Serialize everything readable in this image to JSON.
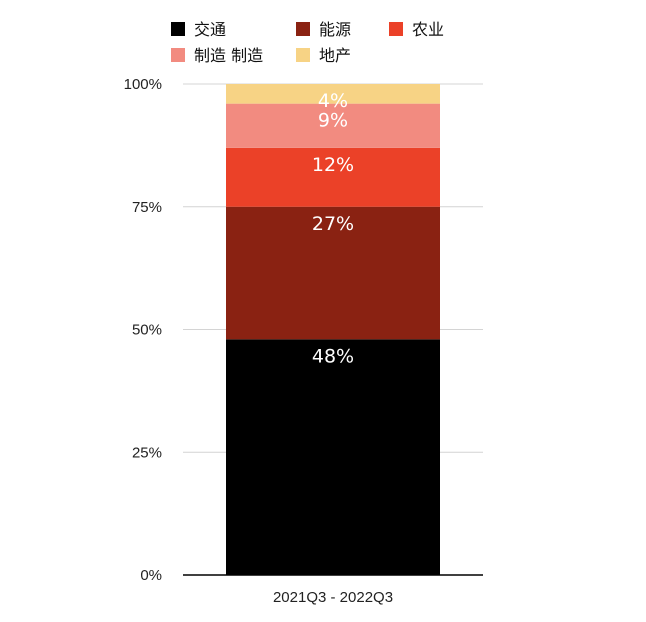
{
  "chart_data": {
    "type": "bar",
    "stacked": true,
    "percent_stacked": true,
    "categories": [
      "2021Q3 - 2022Q3"
    ],
    "series": [
      {
        "name": "交通",
        "values": [
          48
        ],
        "label": "48%",
        "color": "#000000"
      },
      {
        "name": "能源",
        "values": [
          27
        ],
        "label": "27%",
        "color": "#8a2212"
      },
      {
        "name": "农业",
        "values": [
          12
        ],
        "label": "12%",
        "color": "#eb4128"
      },
      {
        "name": "制造 制造",
        "values": [
          9
        ],
        "label": "9%",
        "color": "#f28b80"
      },
      {
        "name": "地产",
        "values": [
          4
        ],
        "label": "4%",
        "color": "#f7d385"
      }
    ],
    "ylim": [
      0,
      100
    ],
    "yticks": [
      {
        "value": 0,
        "label": "0%"
      },
      {
        "value": 25,
        "label": "25%"
      },
      {
        "value": 50,
        "label": "50%"
      },
      {
        "value": 75,
        "label": "75%"
      },
      {
        "value": 100,
        "label": "100%"
      }
    ],
    "grid": true,
    "legend_position": "top"
  }
}
